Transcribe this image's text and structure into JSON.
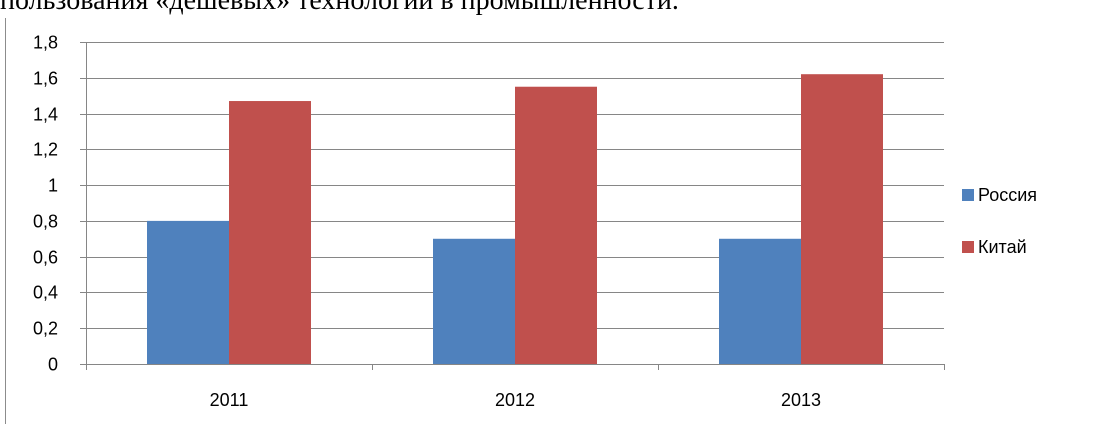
{
  "document": {
    "caption_fragment": "пользования «дешевых» технологий в промышленности."
  },
  "chart_data": {
    "type": "bar",
    "categories": [
      "2011",
      "2012",
      "2013"
    ],
    "series": [
      {
        "name": "Россия",
        "color": "#4f81bd",
        "values": [
          0.8,
          0.7,
          0.7
        ]
      },
      {
        "name": "Китай",
        "color": "#c0504d",
        "values": [
          1.47,
          1.55,
          1.62
        ]
      }
    ],
    "ylim": [
      0,
      1.8
    ],
    "yticks": [
      0,
      0.2,
      0.4,
      0.6,
      0.8,
      1,
      1.2,
      1.4,
      1.6,
      1.8
    ],
    "ytick_labels": [
      "0",
      "0,2",
      "0,4",
      "0,6",
      "0,8",
      "1",
      "1,2",
      "1,4",
      "1,6",
      "1,8"
    ],
    "grid": true,
    "legend_position": "right",
    "title": "",
    "xlabel": "",
    "ylabel": ""
  }
}
